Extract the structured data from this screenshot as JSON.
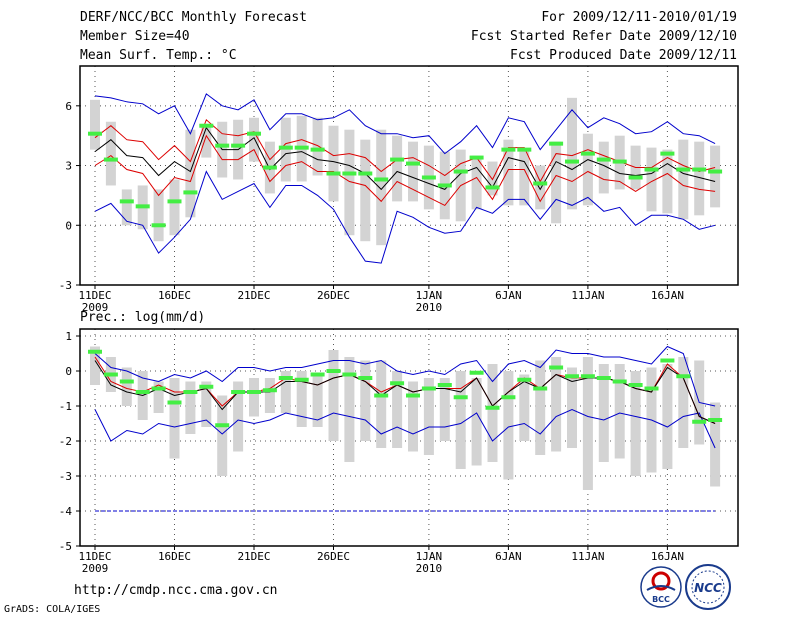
{
  "header": {
    "title": "DERF/NCC/BCC Monthly Forecast",
    "member_size": "Member Size=40",
    "forecast_period": "For 2009/12/11-2010/01/19",
    "started_refer_date": "Fcst Started Refer Date 2009/12/10",
    "produced_date": "Fcst Produced Date 2009/12/11"
  },
  "footer": {
    "url": "http://cmdp.ncc.cma.gov.cn",
    "credit": "GrADS: COLA/IGES",
    "logo_bcc_text": "BCC",
    "logo_ncc_text": "NCC"
  },
  "colors": {
    "box": "#d3d3d3",
    "mean_marker": "#44ee44",
    "envelope_outer": "#0000cc",
    "envelope_inner": "#dd0000",
    "ensemble_mean": "#000000",
    "dashed_line": "#0000cc"
  },
  "chart_data": [
    {
      "type": "box",
      "title": "Mean Surf. Temp.: °C",
      "days": 40,
      "x_ticks": [
        {
          "day": 0,
          "label": "11DEC",
          "sub": "2009"
        },
        {
          "day": 5,
          "label": "16DEC",
          "sub": ""
        },
        {
          "day": 10,
          "label": "21DEC",
          "sub": ""
        },
        {
          "day": 15,
          "label": "26DEC",
          "sub": ""
        },
        {
          "day": 21,
          "label": "1JAN",
          "sub": "2010"
        },
        {
          "day": 26,
          "label": "6JAN",
          "sub": ""
        },
        {
          "day": 31,
          "label": "11JAN",
          "sub": ""
        },
        {
          "day": 36,
          "label": "16JAN",
          "sub": ""
        }
      ],
      "ylim": [
        -3,
        8
      ],
      "yticks": [
        -3,
        0,
        3,
        6
      ],
      "grid": true,
      "box_low": [
        3.8,
        2.0,
        0.0,
        -0.2,
        -0.8,
        -0.5,
        0.4,
        3.4,
        2.4,
        2.3,
        3.2,
        1.6,
        2.2,
        2.2,
        2.5,
        1.2,
        -0.5,
        -0.8,
        -1.0,
        1.2,
        1.2,
        0.8,
        0.3,
        0.2,
        0.8,
        1.5,
        1.0,
        1.0,
        0.8,
        0.1,
        0.8,
        1.0,
        1.6,
        1.8,
        1.8,
        0.7,
        0.6,
        0.3,
        0.5,
        0.9
      ],
      "box_high": [
        6.3,
        5.2,
        1.8,
        2.0,
        1.8,
        2.3,
        4.8,
        5.0,
        5.2,
        5.3,
        5.4,
        4.2,
        5.4,
        5.5,
        5.4,
        5.0,
        4.8,
        4.3,
        4.8,
        4.5,
        4.2,
        4.0,
        3.7,
        3.8,
        3.5,
        3.2,
        4.3,
        3.8,
        3.0,
        4.2,
        6.4,
        4.6,
        4.2,
        4.5,
        4.0,
        3.9,
        3.8,
        4.3,
        4.2,
        4.0
      ],
      "marker": [
        4.6,
        3.3,
        1.2,
        0.95,
        0.0,
        1.2,
        1.65,
        5.0,
        4.0,
        4.0,
        4.6,
        2.9,
        3.9,
        3.9,
        3.8,
        2.6,
        2.6,
        2.6,
        2.3,
        3.3,
        3.1,
        2.4,
        2.0,
        2.7,
        3.4,
        1.9,
        3.8,
        3.8,
        2.1,
        4.1,
        3.2,
        3.6,
        3.3,
        3.2,
        2.4,
        2.8,
        3.6,
        2.8,
        2.8,
        2.7
      ],
      "outer_upper": [
        6.5,
        6.4,
        6.2,
        6.1,
        5.6,
        6.0,
        4.6,
        6.6,
        6.0,
        5.8,
        6.3,
        4.8,
        5.6,
        5.6,
        5.3,
        5.4,
        5.8,
        5.0,
        4.6,
        4.6,
        4.4,
        4.5,
        3.6,
        4.2,
        5.0,
        3.9,
        5.4,
        5.2,
        3.8,
        4.8,
        5.8,
        4.9,
        5.4,
        5.1,
        4.6,
        4.7,
        5.2,
        4.6,
        4.5,
        4.1
      ],
      "inner_upper": [
        4.4,
        5.0,
        4.3,
        4.2,
        3.3,
        4.0,
        3.2,
        5.3,
        4.6,
        4.5,
        4.7,
        3.3,
        4.1,
        4.3,
        4.0,
        3.5,
        3.6,
        3.4,
        2.7,
        3.3,
        3.4,
        3.0,
        2.5,
        3.1,
        3.4,
        2.3,
        3.9,
        3.9,
        2.2,
        3.6,
        3.5,
        3.8,
        3.5,
        3.2,
        2.9,
        2.9,
        3.4,
        3.0,
        2.7,
        2.9
      ],
      "mean": [
        3.7,
        4.3,
        3.5,
        3.4,
        2.5,
        3.2,
        2.7,
        4.9,
        3.8,
        3.8,
        4.4,
        2.8,
        3.6,
        3.7,
        3.3,
        3.2,
        3.0,
        2.6,
        1.8,
        2.7,
        2.4,
        2.1,
        1.8,
        2.6,
        2.9,
        1.9,
        3.4,
        3.2,
        1.8,
        3.2,
        2.8,
        3.3,
        3.0,
        2.6,
        2.5,
        2.6,
        3.1,
        2.6,
        2.4,
        2.2
      ],
      "inner_lower": [
        3.0,
        3.5,
        2.8,
        2.6,
        1.5,
        2.4,
        2.2,
        4.5,
        3.3,
        3.3,
        3.8,
        2.2,
        3.0,
        3.2,
        2.7,
        2.7,
        2.2,
        2.0,
        1.2,
        2.2,
        1.8,
        1.4,
        1.0,
        2.0,
        2.4,
        1.3,
        2.8,
        2.8,
        1.2,
        2.5,
        2.2,
        2.7,
        2.3,
        2.2,
        1.7,
        2.2,
        2.6,
        2.0,
        1.8,
        1.7
      ],
      "outer_lower": [
        0.7,
        1.1,
        0.2,
        0.0,
        -1.4,
        -0.6,
        0.3,
        2.7,
        1.3,
        1.7,
        2.1,
        0.9,
        2.0,
        2.0,
        1.5,
        0.8,
        -0.6,
        -1.8,
        -1.9,
        0.7,
        0.4,
        -0.1,
        -0.4,
        -0.3,
        0.9,
        0.6,
        1.3,
        1.3,
        0.3,
        1.3,
        1.0,
        1.4,
        0.7,
        0.9,
        0.0,
        0.5,
        0.5,
        0.3,
        -0.2,
        0.0
      ]
    },
    {
      "type": "box",
      "title": "Prec.: log(mm/d)",
      "days": 40,
      "x_ticks": [
        {
          "day": 0,
          "label": "11DEC",
          "sub": "2009"
        },
        {
          "day": 5,
          "label": "16DEC",
          "sub": ""
        },
        {
          "day": 10,
          "label": "21DEC",
          "sub": ""
        },
        {
          "day": 15,
          "label": "26DEC",
          "sub": ""
        },
        {
          "day": 21,
          "label": "1JAN",
          "sub": "2010"
        },
        {
          "day": 26,
          "label": "6JAN",
          "sub": ""
        },
        {
          "day": 31,
          "label": "11JAN",
          "sub": ""
        },
        {
          "day": 36,
          "label": "16JAN",
          "sub": ""
        }
      ],
      "ylim": [
        -5,
        1.2
      ],
      "yticks": [
        -5,
        -4,
        -3,
        -2,
        -1,
        0,
        1
      ],
      "grid": true,
      "dashed_level": -4,
      "box_low": [
        -0.4,
        -0.6,
        -1.0,
        -1.4,
        -1.2,
        -2.5,
        -1.8,
        -1.6,
        -3.0,
        -2.3,
        -1.3,
        -1.2,
        -1.2,
        -1.6,
        -1.6,
        -2.0,
        -2.6,
        -2.0,
        -2.2,
        -2.2,
        -2.3,
        -2.4,
        -2.0,
        -2.8,
        -2.7,
        -2.6,
        -3.1,
        -2.0,
        -2.4,
        -2.3,
        -2.2,
        -3.4,
        -2.6,
        -2.5,
        -3.0,
        -2.9,
        -2.8,
        -2.2,
        -2.1,
        -3.3
      ],
      "box_high": [
        0.7,
        0.4,
        0.1,
        0.0,
        -0.3,
        -0.2,
        -0.3,
        -0.3,
        -0.7,
        -0.3,
        -0.2,
        -0.2,
        0.0,
        0.0,
        -0.1,
        0.6,
        0.4,
        0.3,
        0.3,
        0.0,
        -0.3,
        -0.2,
        -0.2,
        0.0,
        -0.2,
        0.2,
        0.0,
        -0.1,
        0.3,
        0.4,
        0.1,
        0.4,
        0.2,
        0.2,
        0.0,
        0.1,
        0.2,
        0.4,
        0.3,
        -0.9
      ],
      "marker": [
        0.55,
        -0.1,
        -0.3,
        -0.6,
        -0.5,
        -0.9,
        -0.6,
        -0.45,
        -1.55,
        -0.6,
        -0.6,
        -0.55,
        -0.2,
        -0.25,
        -0.1,
        0.0,
        -0.1,
        -0.2,
        -0.7,
        -0.35,
        -0.7,
        -0.5,
        -0.4,
        -0.75,
        -0.05,
        -1.05,
        -0.75,
        -0.25,
        -0.5,
        0.1,
        -0.15,
        -0.15,
        -0.2,
        -0.3,
        -0.4,
        -0.5,
        0.3,
        -0.15,
        -1.45,
        -1.4
      ],
      "outer_upper": [
        0.5,
        0.1,
        0.0,
        -0.2,
        -0.3,
        -0.1,
        -0.2,
        0.0,
        -0.3,
        0.1,
        0.1,
        0.0,
        0.1,
        0.1,
        0.2,
        0.3,
        0.3,
        0.2,
        0.3,
        0.0,
        -0.1,
        0.0,
        -0.1,
        0.2,
        0.3,
        -0.3,
        0.2,
        0.3,
        0.1,
        0.6,
        0.5,
        0.5,
        0.4,
        0.4,
        0.3,
        0.2,
        0.7,
        0.5,
        -0.9,
        -1.0
      ],
      "inner_upper": [
        0.4,
        -0.3,
        -0.5,
        -0.6,
        -0.4,
        -0.6,
        -0.6,
        -0.5,
        -1.0,
        -0.6,
        -0.6,
        -0.5,
        -0.2,
        -0.3,
        -0.4,
        -0.2,
        -0.1,
        -0.3,
        -0.6,
        -0.4,
        -0.6,
        -0.5,
        -0.5,
        -0.5,
        -0.2,
        -1.0,
        -0.6,
        -0.2,
        -0.5,
        -0.1,
        -0.2,
        -0.2,
        -0.2,
        -0.3,
        -0.5,
        -0.6,
        0.2,
        -0.2,
        -1.3,
        -1.5
      ],
      "mean": [
        0.3,
        -0.4,
        -0.6,
        -0.7,
        -0.5,
        -0.7,
        -0.6,
        -0.5,
        -1.1,
        -0.6,
        -0.6,
        -0.6,
        -0.3,
        -0.3,
        -0.4,
        -0.2,
        -0.1,
        -0.3,
        -0.7,
        -0.4,
        -0.6,
        -0.5,
        -0.5,
        -0.6,
        -0.2,
        -1.0,
        -0.6,
        -0.3,
        -0.5,
        -0.1,
        -0.3,
        -0.2,
        -0.2,
        -0.3,
        -0.5,
        -0.6,
        0.1,
        -0.2,
        -1.3,
        -1.5
      ],
      "outer_lower": [
        -1.1,
        -2.0,
        -1.7,
        -1.8,
        -1.5,
        -1.6,
        -1.5,
        -1.4,
        -1.8,
        -1.4,
        -1.5,
        -1.4,
        -1.2,
        -1.3,
        -1.4,
        -1.2,
        -1.3,
        -1.4,
        -1.8,
        -1.6,
        -1.8,
        -1.6,
        -1.6,
        -1.5,
        -1.2,
        -2.0,
        -1.6,
        -1.5,
        -1.8,
        -1.3,
        -1.1,
        -1.3,
        -1.4,
        -1.2,
        -1.3,
        -1.4,
        -1.6,
        -1.3,
        -1.2,
        -2.2
      ]
    }
  ]
}
